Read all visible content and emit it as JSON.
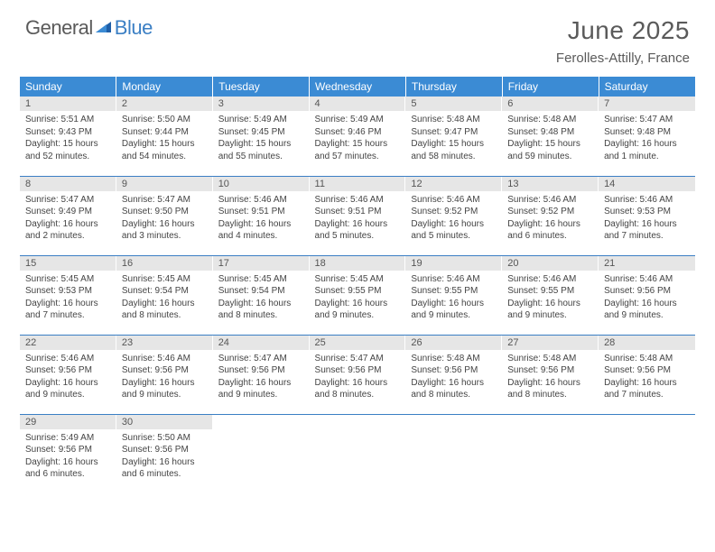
{
  "brand": {
    "word1": "General",
    "word2": "Blue"
  },
  "title": "June 2025",
  "location": "Ferolles-Attilly, France",
  "colors": {
    "header_bg": "#3b8bd4",
    "header_text": "#ffffff",
    "day_num_bg": "#e6e6e6",
    "rule": "#3b7fc4",
    "logo_gray": "#5a5a5a",
    "logo_blue": "#3b7fc4",
    "body_text": "#444444",
    "background": "#ffffff"
  },
  "typography": {
    "month_title_size": 28,
    "location_size": 15,
    "weekday_size": 12,
    "daynum_size": 11,
    "body_size": 10
  },
  "weekdays": [
    "Sunday",
    "Monday",
    "Tuesday",
    "Wednesday",
    "Thursday",
    "Friday",
    "Saturday"
  ],
  "weeks": [
    [
      {
        "n": "1",
        "sunrise": "5:51 AM",
        "sunset": "9:43 PM",
        "daylight": "15 hours and 52 minutes."
      },
      {
        "n": "2",
        "sunrise": "5:50 AM",
        "sunset": "9:44 PM",
        "daylight": "15 hours and 54 minutes."
      },
      {
        "n": "3",
        "sunrise": "5:49 AM",
        "sunset": "9:45 PM",
        "daylight": "15 hours and 55 minutes."
      },
      {
        "n": "4",
        "sunrise": "5:49 AM",
        "sunset": "9:46 PM",
        "daylight": "15 hours and 57 minutes."
      },
      {
        "n": "5",
        "sunrise": "5:48 AM",
        "sunset": "9:47 PM",
        "daylight": "15 hours and 58 minutes."
      },
      {
        "n": "6",
        "sunrise": "5:48 AM",
        "sunset": "9:48 PM",
        "daylight": "15 hours and 59 minutes."
      },
      {
        "n": "7",
        "sunrise": "5:47 AM",
        "sunset": "9:48 PM",
        "daylight": "16 hours and 1 minute."
      }
    ],
    [
      {
        "n": "8",
        "sunrise": "5:47 AM",
        "sunset": "9:49 PM",
        "daylight": "16 hours and 2 minutes."
      },
      {
        "n": "9",
        "sunrise": "5:47 AM",
        "sunset": "9:50 PM",
        "daylight": "16 hours and 3 minutes."
      },
      {
        "n": "10",
        "sunrise": "5:46 AM",
        "sunset": "9:51 PM",
        "daylight": "16 hours and 4 minutes."
      },
      {
        "n": "11",
        "sunrise": "5:46 AM",
        "sunset": "9:51 PM",
        "daylight": "16 hours and 5 minutes."
      },
      {
        "n": "12",
        "sunrise": "5:46 AM",
        "sunset": "9:52 PM",
        "daylight": "16 hours and 5 minutes."
      },
      {
        "n": "13",
        "sunrise": "5:46 AM",
        "sunset": "9:52 PM",
        "daylight": "16 hours and 6 minutes."
      },
      {
        "n": "14",
        "sunrise": "5:46 AM",
        "sunset": "9:53 PM",
        "daylight": "16 hours and 7 minutes."
      }
    ],
    [
      {
        "n": "15",
        "sunrise": "5:45 AM",
        "sunset": "9:53 PM",
        "daylight": "16 hours and 7 minutes."
      },
      {
        "n": "16",
        "sunrise": "5:45 AM",
        "sunset": "9:54 PM",
        "daylight": "16 hours and 8 minutes."
      },
      {
        "n": "17",
        "sunrise": "5:45 AM",
        "sunset": "9:54 PM",
        "daylight": "16 hours and 8 minutes."
      },
      {
        "n": "18",
        "sunrise": "5:45 AM",
        "sunset": "9:55 PM",
        "daylight": "16 hours and 9 minutes."
      },
      {
        "n": "19",
        "sunrise": "5:46 AM",
        "sunset": "9:55 PM",
        "daylight": "16 hours and 9 minutes."
      },
      {
        "n": "20",
        "sunrise": "5:46 AM",
        "sunset": "9:55 PM",
        "daylight": "16 hours and 9 minutes."
      },
      {
        "n": "21",
        "sunrise": "5:46 AM",
        "sunset": "9:56 PM",
        "daylight": "16 hours and 9 minutes."
      }
    ],
    [
      {
        "n": "22",
        "sunrise": "5:46 AM",
        "sunset": "9:56 PM",
        "daylight": "16 hours and 9 minutes."
      },
      {
        "n": "23",
        "sunrise": "5:46 AM",
        "sunset": "9:56 PM",
        "daylight": "16 hours and 9 minutes."
      },
      {
        "n": "24",
        "sunrise": "5:47 AM",
        "sunset": "9:56 PM",
        "daylight": "16 hours and 9 minutes."
      },
      {
        "n": "25",
        "sunrise": "5:47 AM",
        "sunset": "9:56 PM",
        "daylight": "16 hours and 8 minutes."
      },
      {
        "n": "26",
        "sunrise": "5:48 AM",
        "sunset": "9:56 PM",
        "daylight": "16 hours and 8 minutes."
      },
      {
        "n": "27",
        "sunrise": "5:48 AM",
        "sunset": "9:56 PM",
        "daylight": "16 hours and 8 minutes."
      },
      {
        "n": "28",
        "sunrise": "5:48 AM",
        "sunset": "9:56 PM",
        "daylight": "16 hours and 7 minutes."
      }
    ],
    [
      {
        "n": "29",
        "sunrise": "5:49 AM",
        "sunset": "9:56 PM",
        "daylight": "16 hours and 6 minutes."
      },
      {
        "n": "30",
        "sunrise": "5:50 AM",
        "sunset": "9:56 PM",
        "daylight": "16 hours and 6 minutes."
      },
      null,
      null,
      null,
      null,
      null
    ]
  ],
  "labels": {
    "sunrise_prefix": "Sunrise: ",
    "sunset_prefix": "Sunset: ",
    "daylight_prefix": "Daylight: "
  }
}
